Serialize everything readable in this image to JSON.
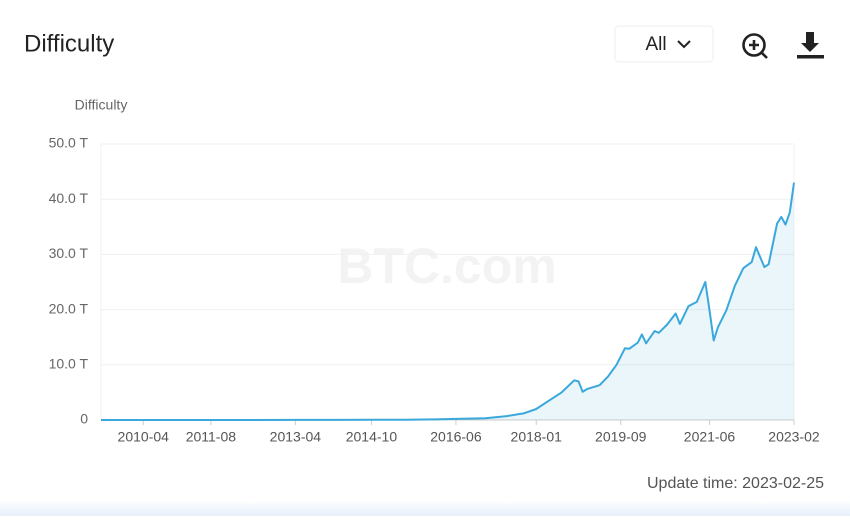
{
  "chart_data": {
    "type": "line",
    "title": "Difficulty",
    "y_label": "Difficulty",
    "range_option": "All",
    "watermark": "BTC.com",
    "update_time": "Update time: 2023-02-25",
    "color": "#3aa8dc",
    "area": true,
    "grid": true,
    "x": [
      "2009-06",
      "2010-06",
      "2011-08",
      "2012-06",
      "2013-04",
      "2014-01",
      "2014-10",
      "2015-06",
      "2016-01",
      "2016-06",
      "2017-01",
      "2017-06",
      "2017-10",
      "2018-01",
      "2018-04",
      "2018-07",
      "2018-10",
      "2018-11",
      "2018-12",
      "2019-01",
      "2019-04",
      "2019-06",
      "2019-08",
      "2019-10",
      "2019-11",
      "2020-01",
      "2020-02",
      "2020-03",
      "2020-05",
      "2020-06",
      "2020-08",
      "2020-10",
      "2020-11",
      "2021-01",
      "2021-03",
      "2021-05",
      "2021-06",
      "2021-07",
      "2021-08",
      "2021-10",
      "2021-12",
      "2022-02",
      "2022-04",
      "2022-05",
      "2022-07",
      "2022-08",
      "2022-10",
      "2022-11",
      "2022-12",
      "2023-01",
      "2023-02"
    ],
    "values": [
      0,
      0,
      0,
      0,
      0.01,
      0.02,
      0.04,
      0.05,
      0.1,
      0.2,
      0.3,
      0.7,
      1.2,
      2.0,
      3.5,
      5.0,
      7.2,
      7.0,
      5.1,
      5.6,
      6.3,
      7.9,
      10.0,
      13.0,
      12.9,
      14.0,
      15.5,
      13.9,
      16.1,
      15.8,
      17.3,
      19.3,
      17.4,
      20.6,
      21.4,
      25.0,
      19.9,
      14.4,
      16.8,
      19.9,
      24.3,
      27.5,
      28.6,
      31.3,
      27.7,
      28.2,
      35.6,
      36.8,
      35.4,
      37.6,
      43.0
    ],
    "xlim": [
      "2009-06",
      "2023-02"
    ],
    "xticks": [
      "2010-04",
      "2011-08",
      "2013-04",
      "2014-10",
      "2016-06",
      "2018-01",
      "2019-09",
      "2021-06",
      "2023-02"
    ],
    "ylim": [
      0,
      50
    ],
    "yticks": [
      0,
      {
        "value": 10,
        "label": "10.0 T"
      },
      {
        "value": 20,
        "label": "20.0 T"
      },
      {
        "value": 30,
        "label": "30.0 T"
      },
      {
        "value": 40,
        "label": "40.0 T"
      },
      {
        "value": 50,
        "label": "50.0 T"
      }
    ]
  }
}
